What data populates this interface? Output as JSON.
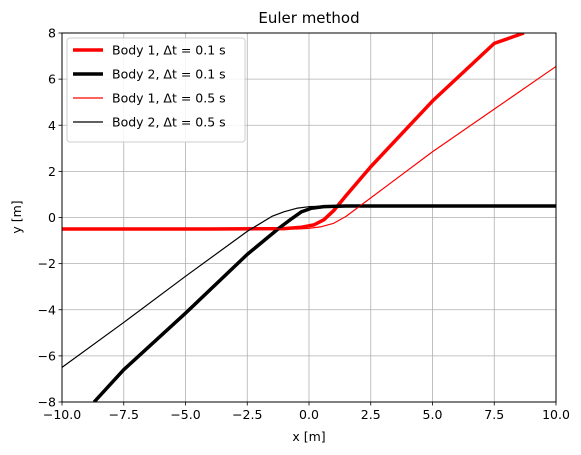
{
  "chart_data": {
    "type": "line",
    "title": "Euler method",
    "xlabel": "x [m]",
    "ylabel": "y [m]",
    "xlim": [
      -10,
      10
    ],
    "ylim": [
      -8,
      8
    ],
    "xticks": [
      -10.0,
      -7.5,
      -5.0,
      -2.5,
      0.0,
      2.5,
      5.0,
      7.5,
      10.0
    ],
    "xtick_labels": [
      "−10.0",
      "−7.5",
      "−5.0",
      "−2.5",
      "0.0",
      "2.5",
      "5.0",
      "7.5",
      "10.0"
    ],
    "yticks": [
      -8,
      -6,
      -4,
      -2,
      0,
      2,
      4,
      6,
      8
    ],
    "ytick_labels": [
      "−8",
      "−6",
      "−4",
      "−2",
      "0",
      "2",
      "4",
      "6",
      "8"
    ],
    "grid": true,
    "legend_position": "top-left",
    "series": [
      {
        "name": "Body 1, Δt = 0.1 s",
        "color": "#ff0000",
        "width": 3.5,
        "points": [
          [
            -10,
            -0.5
          ],
          [
            -4,
            -0.5
          ],
          [
            -1,
            -0.48
          ],
          [
            -0.3,
            -0.42
          ],
          [
            0.2,
            -0.32
          ],
          [
            0.6,
            -0.1
          ],
          [
            1.0,
            0.3
          ],
          [
            1.5,
            0.95
          ],
          [
            2.5,
            2.2
          ],
          [
            5,
            5.05
          ],
          [
            7.5,
            7.55
          ],
          [
            8.7,
            8.0
          ]
        ]
      },
      {
        "name": "Body 2, Δt = 0.1 s",
        "color": "#000000",
        "width": 3.5,
        "points": [
          [
            -8.7,
            -8.0
          ],
          [
            -7.5,
            -6.6
          ],
          [
            -5,
            -4.15
          ],
          [
            -2.5,
            -1.6
          ],
          [
            -1.2,
            -0.45
          ],
          [
            -0.7,
            -0.05
          ],
          [
            -0.3,
            0.25
          ],
          [
            0.1,
            0.4
          ],
          [
            0.6,
            0.47
          ],
          [
            1.5,
            0.5
          ],
          [
            10,
            0.5
          ]
        ]
      },
      {
        "name": "Body 1, Δt = 0.5 s",
        "color": "#ff0000",
        "width": 1.2,
        "points": [
          [
            -10,
            -0.5
          ],
          [
            -5,
            -0.5
          ],
          [
            -0.5,
            -0.5
          ],
          [
            0,
            -0.47
          ],
          [
            0.5,
            -0.4
          ],
          [
            1.0,
            -0.25
          ],
          [
            1.5,
            0.05
          ],
          [
            2.0,
            0.45
          ],
          [
            3,
            1.25
          ],
          [
            5,
            2.85
          ],
          [
            7.5,
            4.7
          ],
          [
            10,
            6.55
          ]
        ]
      },
      {
        "name": "Body 2, Δt = 0.5 s",
        "color": "#000000",
        "width": 1.2,
        "points": [
          [
            -10,
            -6.5
          ],
          [
            -7.5,
            -4.55
          ],
          [
            -5,
            -2.55
          ],
          [
            -2.5,
            -0.6
          ],
          [
            -1.5,
            0.05
          ],
          [
            -1.0,
            0.25
          ],
          [
            -0.5,
            0.4
          ],
          [
            0,
            0.47
          ],
          [
            1,
            0.5
          ],
          [
            10,
            0.5
          ]
        ]
      }
    ]
  }
}
